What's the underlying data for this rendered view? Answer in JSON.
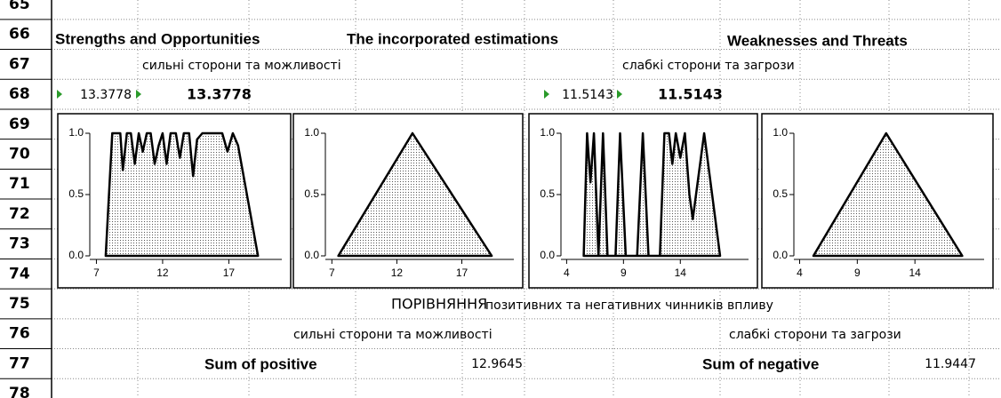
{
  "rows": [
    65,
    66,
    67,
    68,
    69,
    70,
    71,
    72,
    73,
    74,
    75,
    76,
    77,
    78
  ],
  "header": {
    "strengths_title": "Strengths and Opportunities",
    "incorporated_title": "The incorporated estimations",
    "weaknesses_title": "Weaknesses and Threats"
  },
  "row67": {
    "positive_label": "сильні сторони та можливості",
    "negative_label": "слабкі сторони та загрози"
  },
  "row68": {
    "positive_small": 13.3778,
    "positive": 13.3778,
    "negative_small": 11.5143,
    "negative": 11.5143
  },
  "comparison": {
    "title_caps": "ПОРІВНЯННЯ",
    "title_rest": "позитивних та негативних чинників впливу",
    "positive_label": "сильні сторони та можливості",
    "negative_label": "слабкі сторони та загрози",
    "sum_positive_label": "Sum of positive",
    "sum_positive": 12.9645,
    "sum_negative_label": "Sum of negative",
    "sum_negative": 11.9447
  },
  "charts": [
    {
      "type": "area",
      "x": [
        7.7,
        8.2,
        8.8,
        9.0,
        9.3,
        9.6,
        9.9,
        10.2,
        10.5,
        10.8,
        11.1,
        11.4,
        11.7,
        12.0,
        12.3,
        12.6,
        13.0,
        13.3,
        13.6,
        14.0,
        14.3,
        14.6,
        15.0,
        16.5,
        16.9,
        17.3,
        17.7,
        19.2
      ],
      "values": [
        0,
        1,
        1,
        0.7,
        1,
        1,
        0.75,
        1,
        0.85,
        1,
        1,
        0.75,
        0.9,
        1,
        0.75,
        1,
        1,
        0.8,
        1,
        1,
        0.65,
        0.95,
        1,
        1,
        0.85,
        1,
        0.9,
        0
      ],
      "xlim": [
        6.5,
        21
      ],
      "ylim": [
        0,
        1
      ],
      "xticks": [
        7,
        12,
        17
      ],
      "yticks": [
        {
          "value": 0,
          "label": "0.0"
        },
        {
          "value": 0.5,
          "label": "0.5"
        },
        {
          "value": 1,
          "label": "1.0"
        }
      ]
    },
    {
      "type": "area",
      "x": [
        7.5,
        13.2,
        19.3
      ],
      "values": [
        0,
        1,
        0
      ],
      "xlim": [
        6.5,
        21
      ],
      "ylim": [
        0,
        1
      ],
      "xticks": [
        7,
        12,
        17
      ],
      "yticks": [
        {
          "value": 0,
          "label": "0.0"
        },
        {
          "value": 0.5,
          "label": "0.5"
        },
        {
          "value": 1,
          "label": "1.0"
        }
      ]
    },
    {
      "type": "area",
      "x": [
        5.5,
        5.8,
        6.1,
        6.4,
        6.8,
        7.2,
        7.6,
        8.3,
        8.7,
        9.2,
        10.2,
        10.7,
        11.2,
        12.2,
        12.6,
        13.0,
        13.3,
        13.6,
        14.0,
        14.4,
        14.8,
        15.1,
        16.1,
        17.5
      ],
      "values": [
        0,
        1,
        0.6,
        1,
        0,
        1,
        0,
        0,
        1,
        0,
        0,
        1,
        0,
        0,
        1,
        1,
        0.75,
        1,
        0.8,
        1,
        0.5,
        0.3,
        1,
        0
      ],
      "xlim": [
        3.5,
        20
      ],
      "ylim": [
        0,
        1
      ],
      "xticks": [
        4,
        9,
        14
      ],
      "yticks": [
        {
          "value": 0,
          "label": "0.0"
        },
        {
          "value": 0.5,
          "label": "0.5"
        },
        {
          "value": 1,
          "label": "1.0"
        }
      ]
    },
    {
      "type": "area",
      "x": [
        5.2,
        11.5,
        18.1
      ],
      "values": [
        0,
        1,
        0
      ],
      "xlim": [
        3.5,
        20
      ],
      "ylim": [
        0,
        1
      ],
      "xticks": [
        4,
        9,
        14
      ],
      "yticks": [
        {
          "value": 0,
          "label": "0.0"
        },
        {
          "value": 0.5,
          "label": "0.5"
        },
        {
          "value": 1,
          "label": "1.0"
        }
      ]
    }
  ]
}
